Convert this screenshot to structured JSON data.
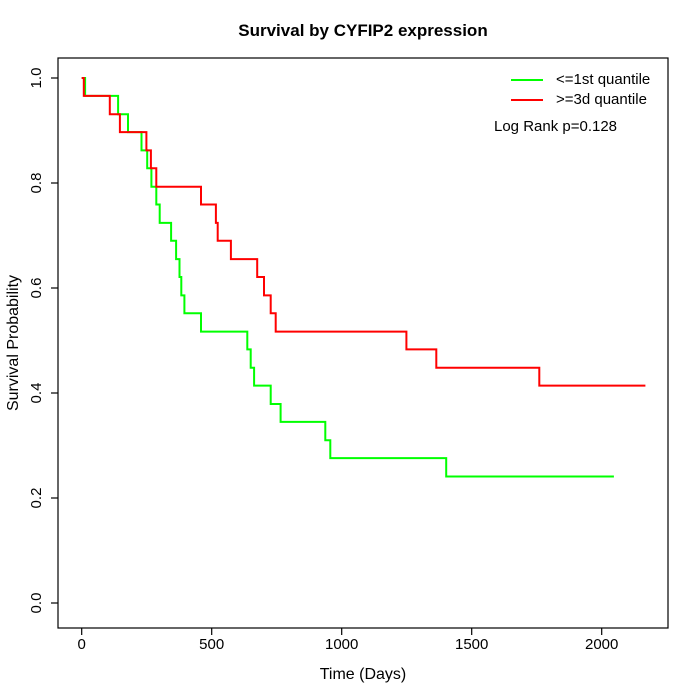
{
  "chart_data": {
    "type": "line",
    "subtype": "kaplan-meier-step-curves",
    "title": "Survival by CYFIP2 expression",
    "xlabel": "Time (Days)",
    "ylabel": "Survival Probability",
    "xlim": [
      0,
      2250
    ],
    "ylim": [
      0,
      1
    ],
    "x_ticks": [
      0,
      500,
      1000,
      1500,
      2000
    ],
    "y_ticks": [
      0.0,
      0.2,
      0.4,
      0.6,
      0.8,
      1.0
    ],
    "grid": false,
    "legend_position": "top-right",
    "annotation": "Log Rank p=0.128",
    "series": [
      {
        "name": "<=1st quantile",
        "color": "#00FF00",
        "end_time": 2047,
        "points": [
          [
            0,
            1.0
          ],
          [
            13,
            0.966
          ],
          [
            140,
            0.931
          ],
          [
            178,
            0.897
          ],
          [
            230,
            0.862
          ],
          [
            252,
            0.828
          ],
          [
            268,
            0.793
          ],
          [
            287,
            0.759
          ],
          [
            300,
            0.724
          ],
          [
            344,
            0.69
          ],
          [
            363,
            0.655
          ],
          [
            376,
            0.621
          ],
          [
            383,
            0.586
          ],
          [
            395,
            0.552
          ],
          [
            459,
            0.517
          ],
          [
            637,
            0.483
          ],
          [
            650,
            0.448
          ],
          [
            663,
            0.414
          ],
          [
            727,
            0.379
          ],
          [
            765,
            0.345
          ],
          [
            937,
            0.31
          ],
          [
            956,
            0.276
          ],
          [
            1402,
            0.241
          ]
        ]
      },
      {
        "name": ">=3d quantile",
        "color": "#FF0000",
        "end_time": 2168,
        "points": [
          [
            0,
            1.0
          ],
          [
            8,
            0.966
          ],
          [
            108,
            0.931
          ],
          [
            147,
            0.897
          ],
          [
            249,
            0.862
          ],
          [
            266,
            0.828
          ],
          [
            287,
            0.793
          ],
          [
            459,
            0.759
          ],
          [
            516,
            0.724
          ],
          [
            523,
            0.69
          ],
          [
            574,
            0.655
          ],
          [
            675,
            0.621
          ],
          [
            701,
            0.586
          ],
          [
            727,
            0.552
          ],
          [
            746,
            0.517
          ],
          [
            1249,
            0.483
          ],
          [
            1364,
            0.448
          ],
          [
            1760,
            0.414
          ]
        ]
      }
    ]
  }
}
